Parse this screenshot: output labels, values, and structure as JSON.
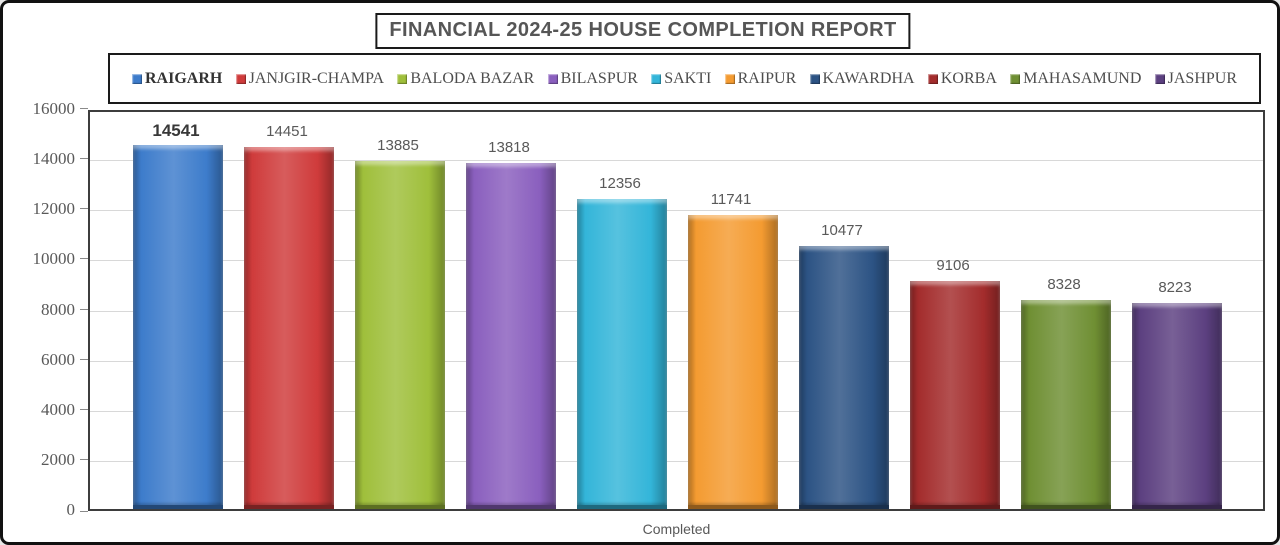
{
  "title": "FINANCIAL 2024-25 HOUSE COMPLETION REPORT",
  "chart_data": {
    "type": "bar",
    "title": "FINANCIAL 2024-25 HOUSE COMPLETION REPORT",
    "xlabel": "Completed",
    "ylabel": "",
    "ylim": [
      0,
      16000
    ],
    "ytick_step": 2000,
    "grid": true,
    "legend_position": "top",
    "highlighted_category": "RAIGARH",
    "categories": [
      "RAIGARH",
      "JANJGIR-CHAMPA",
      "BALODA BAZAR",
      "BILASPUR",
      "SAKTI",
      "RAIPUR",
      "KAWARDHA",
      "KORBA",
      "MAHASAMUND",
      "JASHPUR"
    ],
    "values": [
      14541,
      14451,
      13885,
      13818,
      12356,
      11741,
      10477,
      9106,
      8328,
      8223
    ],
    "colors": [
      "#3D7CCB",
      "#CF3B3B",
      "#9FBF3B",
      "#8A5FBE",
      "#33B5D9",
      "#F49B31",
      "#2C5384",
      "#A32C2C",
      "#6F8F33",
      "#5C4080"
    ]
  }
}
